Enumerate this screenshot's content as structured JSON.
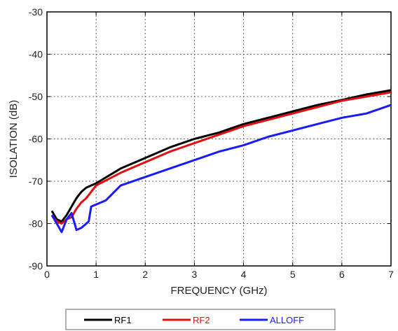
{
  "chart_data": {
    "type": "line",
    "xlabel": "FREQUENCY (GHz)",
    "ylabel": "ISOLATION (dB)",
    "xlim": [
      0,
      7
    ],
    "ylim": [
      -90,
      -30
    ],
    "x_ticks": [
      0,
      1,
      2,
      3,
      4,
      5,
      6,
      7
    ],
    "y_ticks": [
      -90,
      -80,
      -70,
      -60,
      -50,
      -40,
      -30
    ],
    "grid": true,
    "legend_position": "bottom",
    "series": [
      {
        "name": "RF1",
        "color": "#000000",
        "points": [
          [
            0.1,
            -77
          ],
          [
            0.2,
            -79
          ],
          [
            0.3,
            -79.5
          ],
          [
            0.4,
            -78
          ],
          [
            0.5,
            -76
          ],
          [
            0.6,
            -74
          ],
          [
            0.7,
            -72.5
          ],
          [
            0.8,
            -71.5
          ],
          [
            1.0,
            -70.5
          ],
          [
            1.5,
            -67
          ],
          [
            2.0,
            -64.5
          ],
          [
            2.5,
            -62
          ],
          [
            3.0,
            -60
          ],
          [
            3.5,
            -58.5
          ],
          [
            4.0,
            -56.5
          ],
          [
            4.5,
            -55
          ],
          [
            5.0,
            -53.5
          ],
          [
            5.5,
            -52
          ],
          [
            6.0,
            -50.8
          ],
          [
            6.5,
            -49.5
          ],
          [
            7.0,
            -48.5
          ]
        ]
      },
      {
        "name": "RF2",
        "color": "#e01010",
        "points": [
          [
            0.1,
            -78
          ],
          [
            0.2,
            -79.5
          ],
          [
            0.3,
            -80
          ],
          [
            0.4,
            -79
          ],
          [
            0.5,
            -78.5
          ],
          [
            0.6,
            -76.5
          ],
          [
            0.7,
            -75
          ],
          [
            0.8,
            -74
          ],
          [
            1.0,
            -71
          ],
          [
            1.5,
            -68
          ],
          [
            2.0,
            -65.5
          ],
          [
            2.5,
            -63
          ],
          [
            3.0,
            -61
          ],
          [
            3.5,
            -59
          ],
          [
            4.0,
            -57
          ],
          [
            4.5,
            -55.5
          ],
          [
            5.0,
            -54
          ],
          [
            5.5,
            -52.5
          ],
          [
            6.0,
            -51
          ],
          [
            6.5,
            -50
          ],
          [
            7.0,
            -49
          ]
        ]
      },
      {
        "name": "ALLOFF",
        "color": "#1a1aff",
        "points": [
          [
            0.1,
            -78
          ],
          [
            0.2,
            -80
          ],
          [
            0.3,
            -82
          ],
          [
            0.4,
            -79
          ],
          [
            0.5,
            -77.5
          ],
          [
            0.6,
            -81.5
          ],
          [
            0.7,
            -81
          ],
          [
            0.85,
            -79.5
          ],
          [
            0.9,
            -76
          ],
          [
            1.0,
            -75.5
          ],
          [
            1.2,
            -74.5
          ],
          [
            1.5,
            -71
          ],
          [
            2.0,
            -69
          ],
          [
            2.5,
            -67
          ],
          [
            3.0,
            -65
          ],
          [
            3.5,
            -63
          ],
          [
            4.0,
            -61.5
          ],
          [
            4.5,
            -59.5
          ],
          [
            5.0,
            -58
          ],
          [
            5.5,
            -56.5
          ],
          [
            6.0,
            -55
          ],
          [
            6.5,
            -54
          ],
          [
            7.0,
            -52
          ]
        ]
      }
    ]
  }
}
